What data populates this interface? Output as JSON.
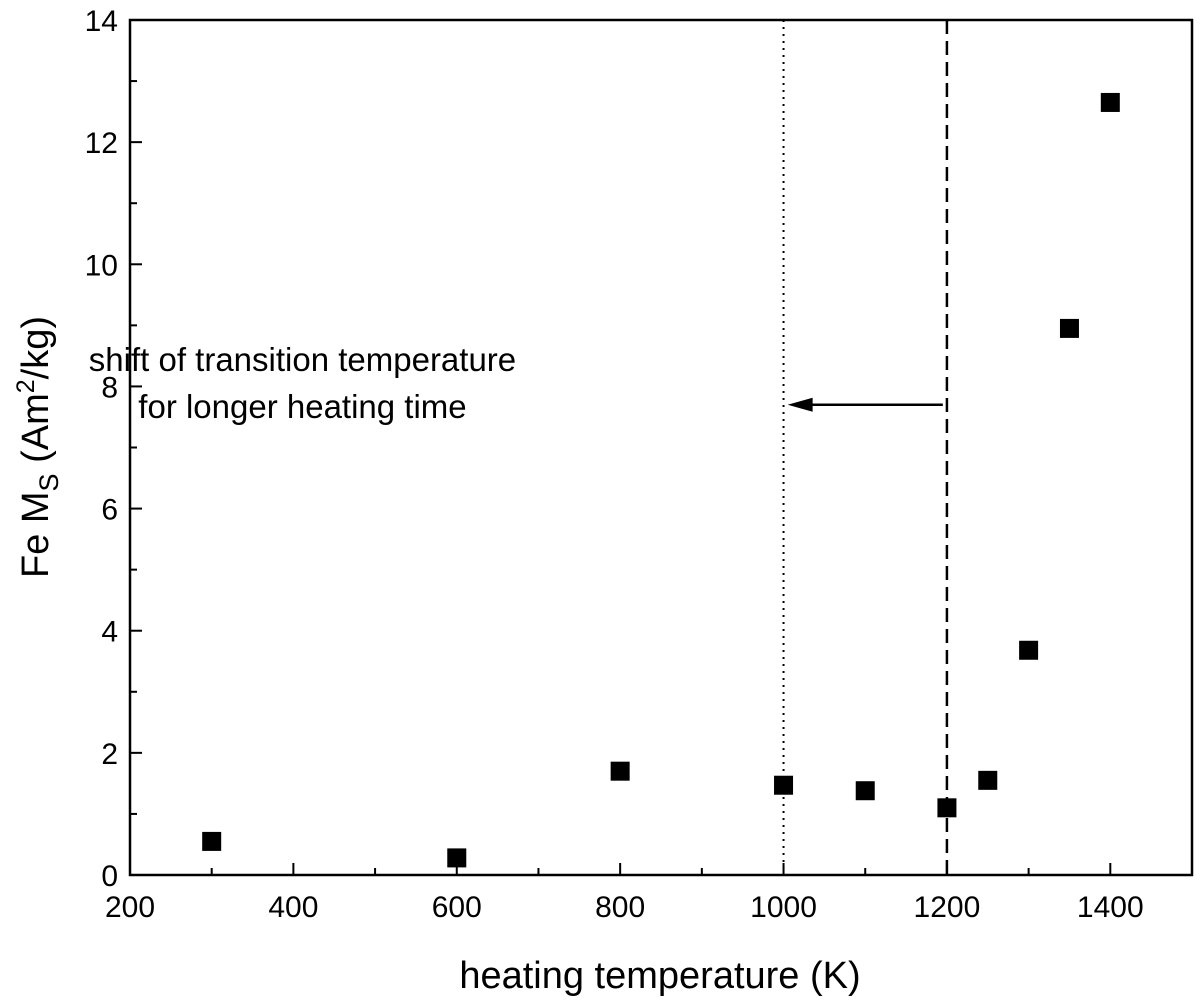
{
  "chart_data": {
    "type": "scatter",
    "title": "",
    "xlabel": "heating temperature (K)",
    "ylabel": {
      "prefix": "Fe M",
      "sub": "S",
      "unit_open": " (Am",
      "sup": "2",
      "unit_close": "/kg)"
    },
    "xlim": [
      200,
      1500
    ],
    "ylim": [
      0,
      14
    ],
    "x_ticks": [
      200,
      400,
      600,
      800,
      1000,
      1200,
      1400
    ],
    "y_ticks": [
      0,
      2,
      4,
      6,
      8,
      10,
      12,
      14
    ],
    "grid": false,
    "legend": "none",
    "series": [
      {
        "name": "Fe Ms",
        "marker": "square",
        "color": "#000000",
        "points": [
          {
            "x": 300,
            "y": 0.55
          },
          {
            "x": 600,
            "y": 0.28
          },
          {
            "x": 800,
            "y": 1.7
          },
          {
            "x": 1000,
            "y": 1.47
          },
          {
            "x": 1100,
            "y": 1.38
          },
          {
            "x": 1200,
            "y": 1.1
          },
          {
            "x": 1250,
            "y": 1.55
          },
          {
            "x": 1300,
            "y": 3.68
          },
          {
            "x": 1350,
            "y": 8.95
          },
          {
            "x": 1400,
            "y": 12.65
          }
        ]
      }
    ],
    "reference_lines": [
      {
        "name": "dotted-line",
        "x": 1000,
        "style": "dotted"
      },
      {
        "name": "dashed-line",
        "x": 1200,
        "style": "dashed"
      }
    ],
    "annotation": {
      "lines": [
        "shift of transition temperature",
        "for longer heating time"
      ],
      "anchor_x": 760,
      "anchor_y": 8.25
    },
    "arrow": {
      "from_x": 1195,
      "to_x": 1005,
      "y": 7.7
    }
  }
}
